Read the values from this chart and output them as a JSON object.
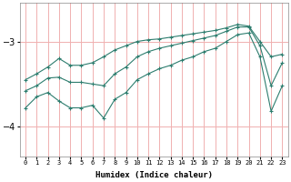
{
  "xlabel": "Humidex (Indice chaleur)",
  "bg_color": "#ffffff",
  "line_color": "#2d7d6e",
  "grid_color": "#f0b0b0",
  "xlim": [
    -0.5,
    23.5
  ],
  "ylim": [
    -4.35,
    -2.55
  ],
  "yticks": [
    -4,
    -3
  ],
  "xticks": [
    0,
    1,
    2,
    3,
    4,
    5,
    6,
    7,
    8,
    9,
    10,
    11,
    12,
    13,
    14,
    15,
    16,
    17,
    18,
    19,
    20,
    21,
    22,
    23
  ],
  "line1_x": [
    0,
    1,
    2,
    3,
    4,
    5,
    6,
    7,
    8,
    9,
    10,
    11,
    12,
    13,
    14,
    15,
    16,
    17,
    18,
    19,
    20,
    21,
    22,
    23
  ],
  "line1_y": [
    -3.45,
    -3.38,
    -3.3,
    -3.2,
    -3.28,
    -3.28,
    -3.25,
    -3.18,
    -3.1,
    -3.05,
    -3.0,
    -2.98,
    -2.97,
    -2.95,
    -2.93,
    -2.91,
    -2.89,
    -2.87,
    -2.84,
    -2.8,
    -2.82,
    -3.0,
    -3.18,
    -3.15
  ],
  "line2_x": [
    0,
    1,
    2,
    3,
    4,
    5,
    6,
    7,
    8,
    9,
    10,
    11,
    12,
    13,
    14,
    15,
    16,
    17,
    18,
    19,
    20,
    21,
    22,
    23
  ],
  "line2_y": [
    -3.58,
    -3.52,
    -3.43,
    -3.42,
    -3.48,
    -3.48,
    -3.5,
    -3.52,
    -3.38,
    -3.3,
    -3.18,
    -3.12,
    -3.08,
    -3.05,
    -3.02,
    -2.99,
    -2.96,
    -2.93,
    -2.88,
    -2.83,
    -2.83,
    -3.05,
    -3.52,
    -3.25
  ],
  "line3_x": [
    0,
    1,
    2,
    3,
    4,
    5,
    6,
    7,
    8,
    9,
    10,
    11,
    12,
    13,
    14,
    15,
    16,
    17,
    18,
    19,
    20,
    21,
    22,
    23
  ],
  "line3_y": [
    -3.78,
    -3.65,
    -3.6,
    -3.7,
    -3.78,
    -3.78,
    -3.75,
    -3.9,
    -3.68,
    -3.6,
    -3.45,
    -3.38,
    -3.32,
    -3.28,
    -3.22,
    -3.18,
    -3.12,
    -3.08,
    -3.0,
    -2.92,
    -2.9,
    -3.18,
    -3.82,
    -3.52
  ]
}
